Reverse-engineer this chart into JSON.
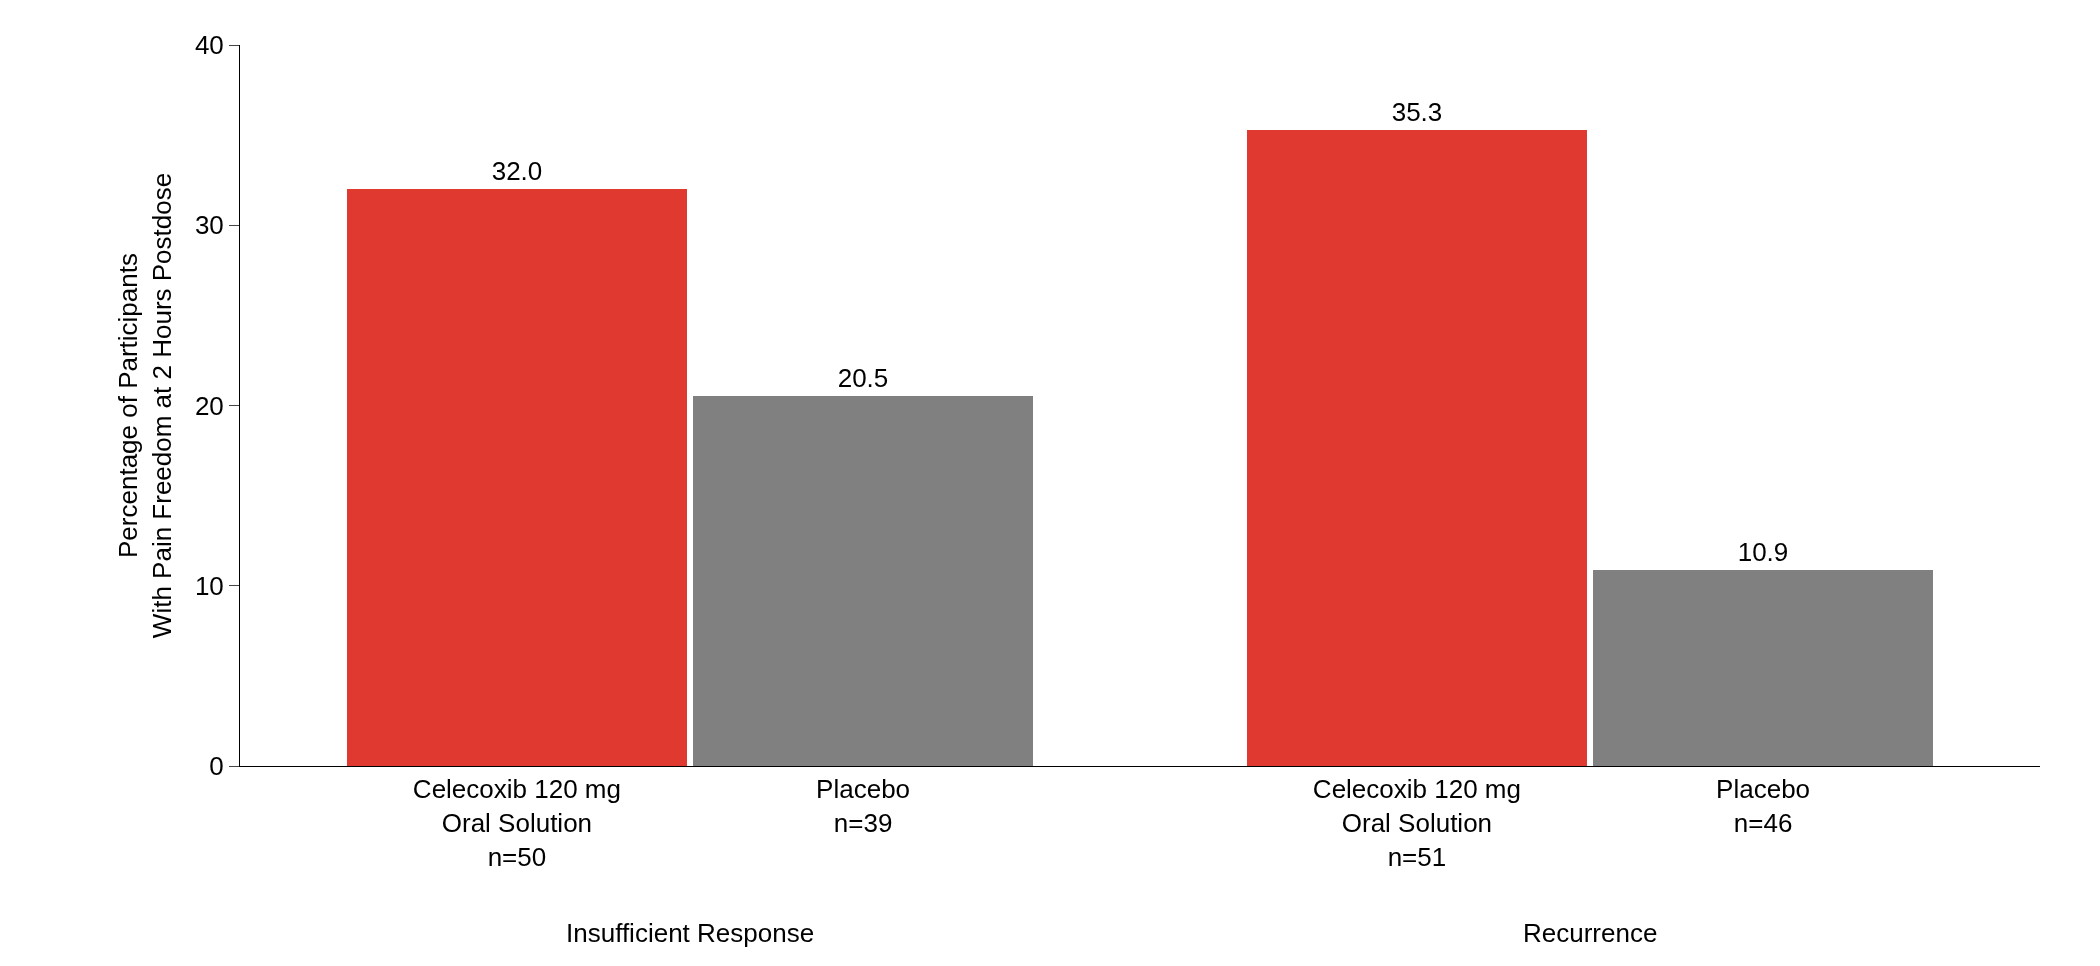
{
  "chart_data": {
    "type": "bar",
    "categories": [
      "Celecoxib 120 mg\nOral Solution\nn=50",
      "Placebo\nn=39",
      "Celecoxib 120 mg\nOral Solution\nn=51",
      "Placebo\nn=46"
    ],
    "values": [
      32.0,
      20.5,
      35.3,
      10.9
    ],
    "colors": [
      "#e03a30",
      "#808080",
      "#e03a30",
      "#808080"
    ],
    "ylabel": "Percentage of Participants\nWith Pain Freedom at 2 Hours Postdose",
    "ylim": [
      0,
      40
    ],
    "yticks": [
      0,
      10,
      20,
      30,
      40
    ],
    "value_labels": [
      "32.0",
      "20.5",
      "35.3",
      "10.9"
    ],
    "annotations": [
      "Insufficient Response",
      "Recurrence"
    ]
  }
}
